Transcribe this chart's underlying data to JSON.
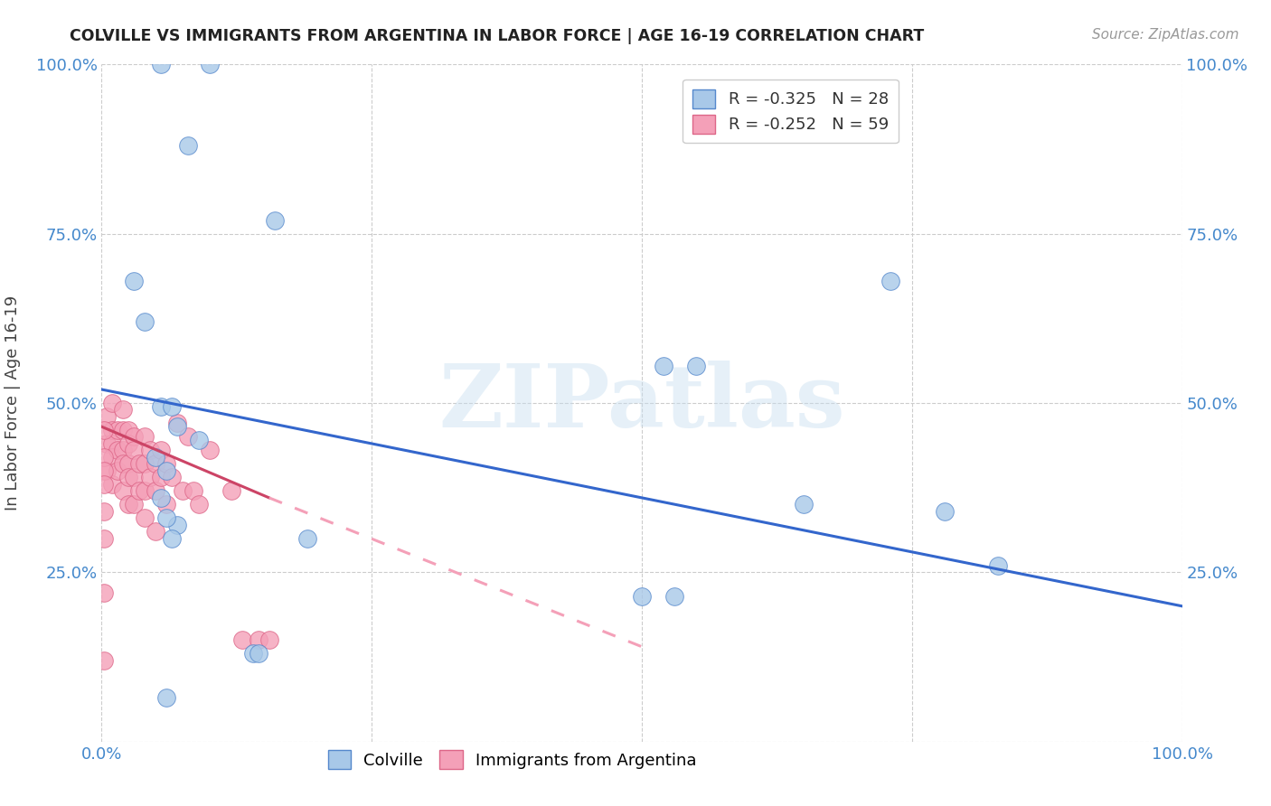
{
  "title": "COLVILLE VS IMMIGRANTS FROM ARGENTINA IN LABOR FORCE | AGE 16-19 CORRELATION CHART",
  "source": "Source: ZipAtlas.com",
  "ylabel": "In Labor Force | Age 16-19",
  "xlim": [
    0,
    1
  ],
  "ylim": [
    0,
    1
  ],
  "xtick_positions": [
    0,
    0.25,
    0.5,
    0.75,
    1.0
  ],
  "xticklabels": [
    "0.0%",
    "",
    "",
    "",
    "100.0%"
  ],
  "ytick_positions": [
    0,
    0.25,
    0.5,
    0.75,
    1.0
  ],
  "yticklabels": [
    "",
    "25.0%",
    "50.0%",
    "75.0%",
    "100.0%"
  ],
  "colville_color": "#a8c8e8",
  "argentina_color": "#f4a0b8",
  "colville_edge": "#5588cc",
  "argentina_edge": "#dd6688",
  "trendline_colville_color": "#3366cc",
  "trendline_argentina_solid_color": "#cc4466",
  "trendline_argentina_dash_color": "#f4a0b8",
  "legend_R_colville": "-0.325",
  "legend_N_colville": "28",
  "legend_R_argentina": "-0.252",
  "legend_N_argentina": "59",
  "colville_x": [
    0.055,
    0.1,
    0.08,
    0.03,
    0.04,
    0.055,
    0.065,
    0.07,
    0.09,
    0.05,
    0.06,
    0.055,
    0.07,
    0.19,
    0.52,
    0.55,
    0.5,
    0.53,
    0.65,
    0.78,
    0.83,
    0.73,
    0.06,
    0.065,
    0.14,
    0.145,
    0.06,
    0.16
  ],
  "colville_y": [
    1.0,
    1.0,
    0.88,
    0.68,
    0.62,
    0.495,
    0.495,
    0.465,
    0.445,
    0.42,
    0.4,
    0.36,
    0.32,
    0.3,
    0.555,
    0.555,
    0.215,
    0.215,
    0.35,
    0.34,
    0.26,
    0.68,
    0.33,
    0.3,
    0.13,
    0.13,
    0.065,
    0.77
  ],
  "argentina_x": [
    0.005,
    0.005,
    0.005,
    0.01,
    0.01,
    0.01,
    0.01,
    0.01,
    0.015,
    0.015,
    0.015,
    0.02,
    0.02,
    0.02,
    0.02,
    0.02,
    0.025,
    0.025,
    0.025,
    0.025,
    0.025,
    0.03,
    0.03,
    0.03,
    0.03,
    0.035,
    0.035,
    0.04,
    0.04,
    0.04,
    0.04,
    0.045,
    0.045,
    0.05,
    0.05,
    0.05,
    0.055,
    0.055,
    0.06,
    0.06,
    0.065,
    0.07,
    0.075,
    0.08,
    0.085,
    0.09,
    0.1,
    0.12,
    0.13,
    0.145,
    0.155,
    0.002,
    0.002,
    0.002,
    0.002,
    0.002,
    0.002,
    0.002,
    0.002
  ],
  "argentina_y": [
    0.48,
    0.44,
    0.4,
    0.5,
    0.46,
    0.44,
    0.42,
    0.38,
    0.46,
    0.43,
    0.4,
    0.49,
    0.46,
    0.43,
    0.41,
    0.37,
    0.46,
    0.44,
    0.41,
    0.39,
    0.35,
    0.45,
    0.43,
    0.39,
    0.35,
    0.41,
    0.37,
    0.45,
    0.41,
    0.37,
    0.33,
    0.43,
    0.39,
    0.41,
    0.37,
    0.31,
    0.43,
    0.39,
    0.41,
    0.35,
    0.39,
    0.47,
    0.37,
    0.45,
    0.37,
    0.35,
    0.43,
    0.37,
    0.15,
    0.15,
    0.15,
    0.46,
    0.42,
    0.4,
    0.38,
    0.34,
    0.3,
    0.22,
    0.12
  ],
  "trendline_blue_x0": 0.0,
  "trendline_blue_y0": 0.52,
  "trendline_blue_x1": 1.0,
  "trendline_blue_y1": 0.2,
  "trendline_pink_solid_x0": 0.0,
  "trendline_pink_solid_y0": 0.465,
  "trendline_pink_solid_x1": 0.155,
  "trendline_pink_solid_y1": 0.36,
  "trendline_pink_dash_x0": 0.155,
  "trendline_pink_dash_y0": 0.36,
  "trendline_pink_dash_x1": 0.5,
  "trendline_pink_dash_y1": 0.14,
  "watermark": "ZIPatlas",
  "background_color": "#ffffff",
  "grid_color": "#cccccc"
}
